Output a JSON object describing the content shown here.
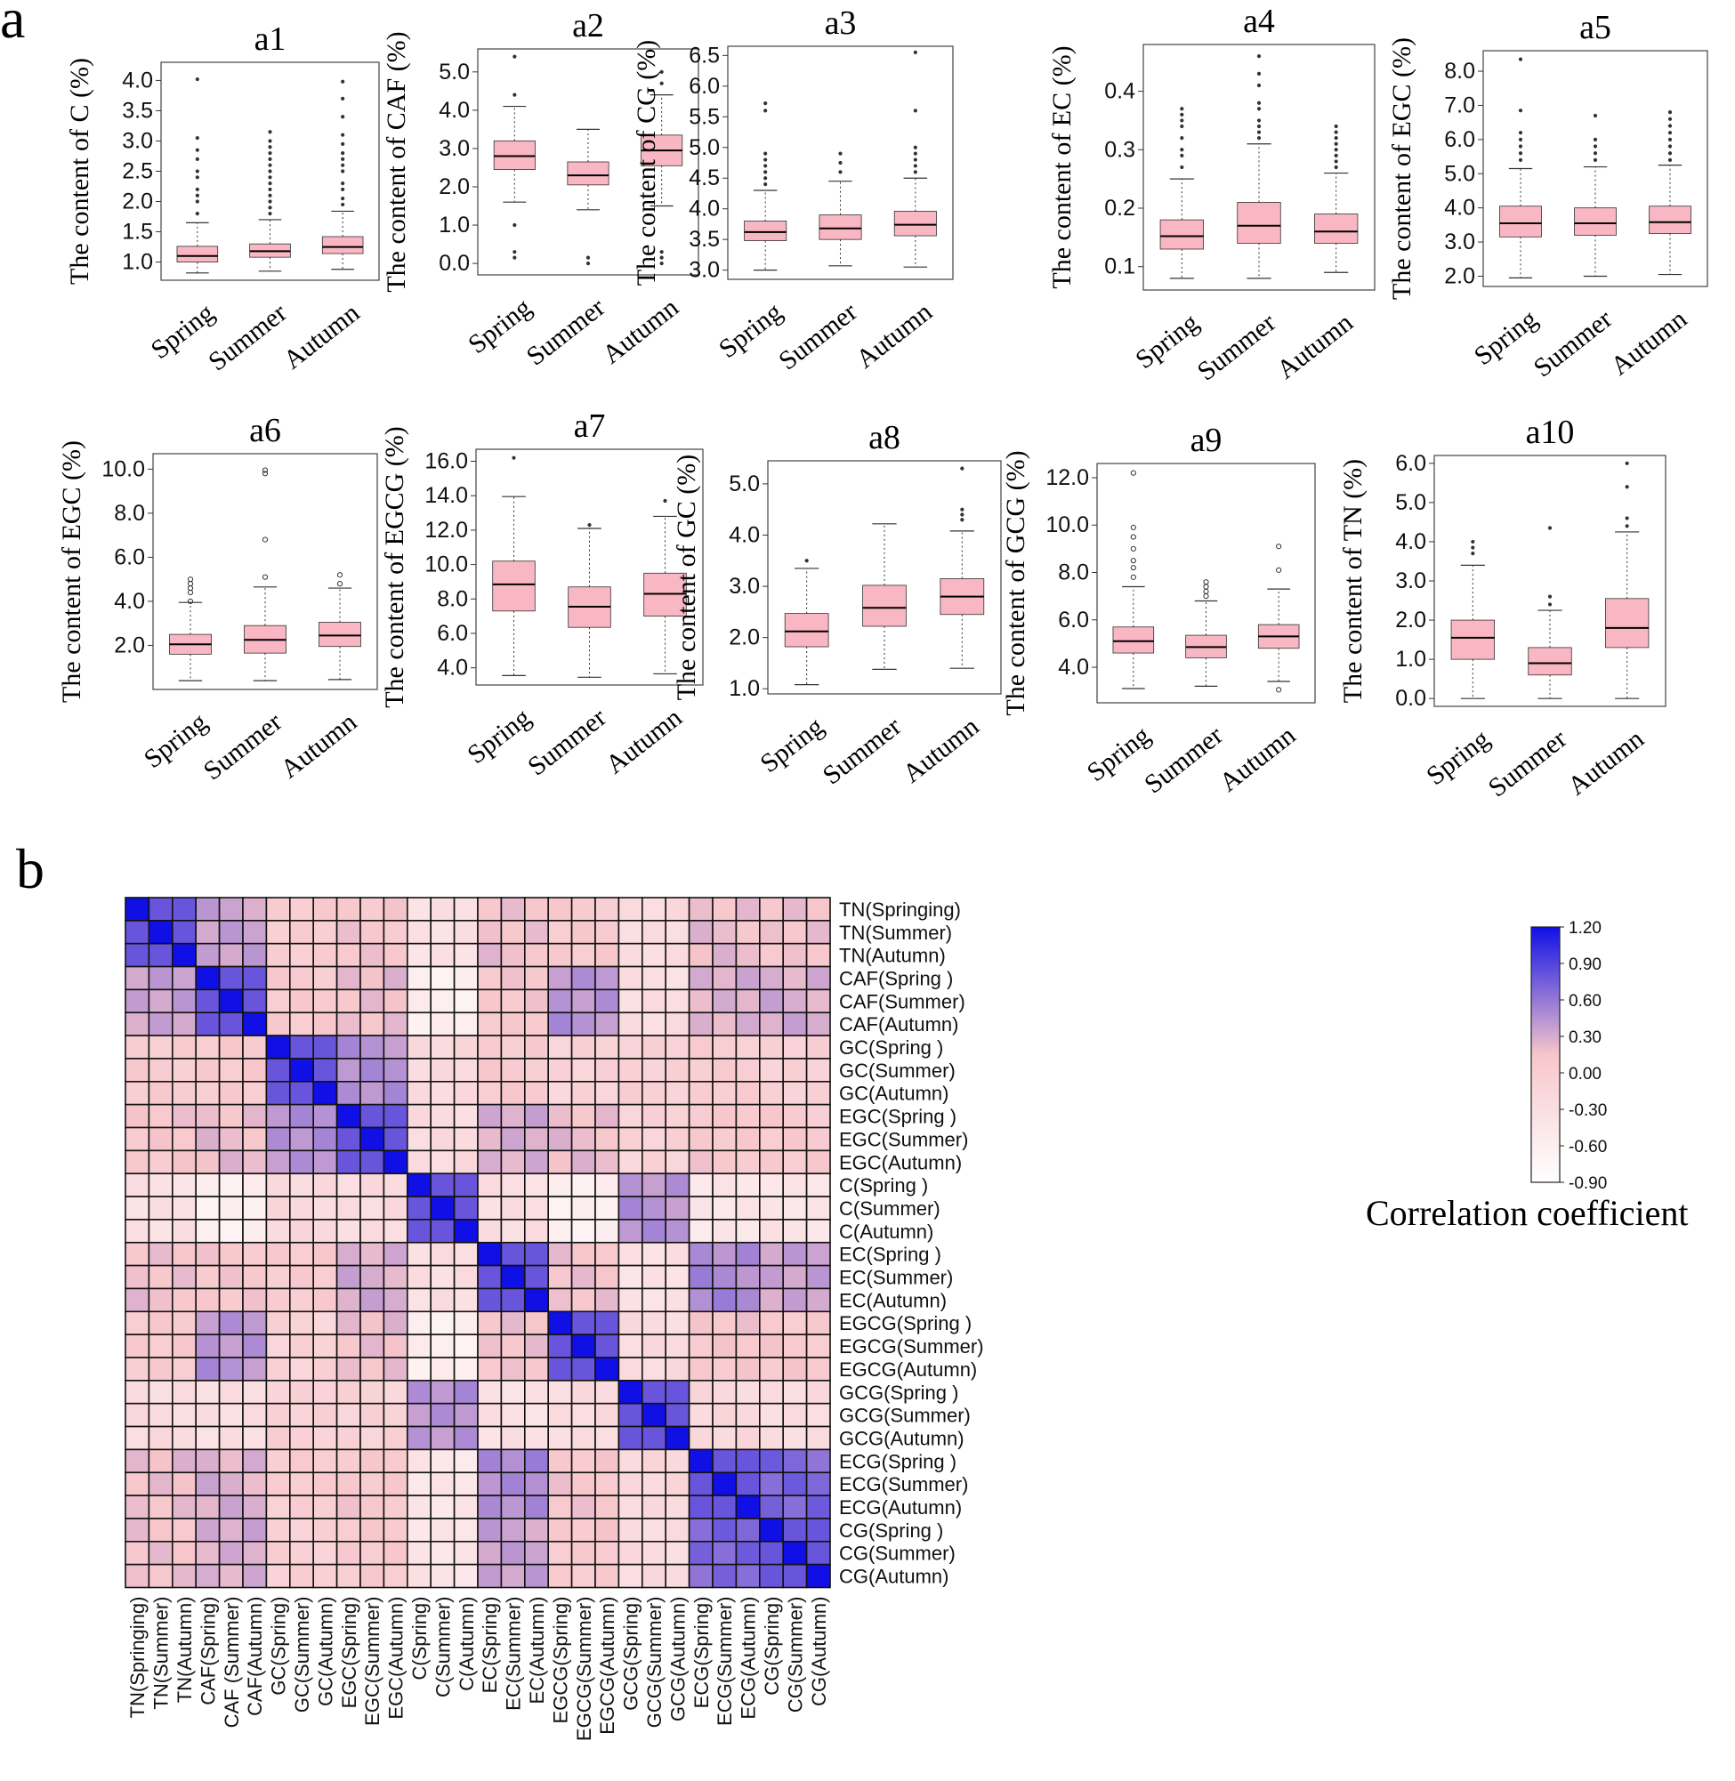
{
  "figure": {
    "panel_a_label": "a",
    "panel_b_label": "b"
  },
  "colors": {
    "box_fill": "#f9b6c3",
    "box_edge": "#333333",
    "heat_low": "#ffffff",
    "heat_mid": "#f7c6cb",
    "heat_high": "#1010e6"
  },
  "chart_data": [
    {
      "id": "a1",
      "type": "box",
      "title": "a1",
      "ylabel": "The content of C (%)",
      "categories": [
        "Spring",
        "Summer",
        "Autumn"
      ],
      "yticks": [
        1.0,
        1.5,
        2.0,
        2.5,
        3.0,
        3.5,
        4.0
      ],
      "tick_labels": [
        "1.0",
        "1.5",
        "2.0",
        "2.5",
        "3.0",
        "3.5",
        "4.0"
      ],
      "ylim": [
        0.7,
        4.3
      ],
      "boxes": [
        {
          "min": 0.82,
          "q1": 1.0,
          "median": 1.1,
          "q3": 1.26,
          "max": 1.65,
          "outliers": [
            1.8,
            2.0,
            2.1,
            2.2,
            2.4,
            2.5,
            2.7,
            2.85,
            3.05,
            4.02
          ]
        },
        {
          "min": 0.85,
          "q1": 1.08,
          "median": 1.18,
          "q3": 1.3,
          "max": 1.7,
          "outliers": [
            1.8,
            1.9,
            2.0,
            2.1,
            2.2,
            2.3,
            2.4,
            2.5,
            2.6,
            2.7,
            2.8,
            2.9,
            3.0,
            3.15
          ]
        },
        {
          "min": 0.88,
          "q1": 1.14,
          "median": 1.25,
          "q3": 1.42,
          "max": 1.84,
          "outliers": [
            1.95,
            2.05,
            2.2,
            2.3,
            2.5,
            2.6,
            2.7,
            2.8,
            2.95,
            3.1,
            3.4,
            3.7,
            3.98
          ]
        }
      ]
    },
    {
      "id": "a2",
      "type": "box",
      "title": "a2",
      "ylabel": "The content of CAF (%)",
      "categories": [
        "Spring",
        "Summer",
        "Autumn"
      ],
      "yticks": [
        0,
        1,
        2,
        3,
        4,
        5
      ],
      "tick_labels": [
        "0.0",
        "1.0",
        "2.0",
        "3.0",
        "4.0",
        "5.0"
      ],
      "ylim": [
        -0.3,
        5.6
      ],
      "boxes": [
        {
          "min": 1.6,
          "q1": 2.45,
          "median": 2.8,
          "q3": 3.2,
          "max": 4.1,
          "outliers": [
            0.15,
            0.3,
            1.0,
            4.4,
            5.4
          ]
        },
        {
          "min": 1.4,
          "q1": 2.05,
          "median": 2.3,
          "q3": 2.65,
          "max": 3.5,
          "outliers": [
            0.0,
            0.15
          ]
        },
        {
          "min": 1.5,
          "q1": 2.55,
          "median": 2.95,
          "q3": 3.35,
          "max": 4.4,
          "outliers": [
            0.0,
            0.15,
            0.3,
            4.7,
            5.0
          ]
        }
      ]
    },
    {
      "id": "a3",
      "type": "box",
      "title": "a3",
      "ylabel": "The content of CG (%)",
      "categories": [
        "Spring",
        "Summer",
        "Autumn"
      ],
      "yticks": [
        3.0,
        3.5,
        4.0,
        4.5,
        5.0,
        5.5,
        6.0,
        6.5
      ],
      "tick_labels": [
        "3.0",
        "3.5",
        "4.0",
        "4.5",
        "5.0",
        "5.5",
        "6.0",
        "6.5"
      ],
      "ylim": [
        2.85,
        6.65
      ],
      "boxes": [
        {
          "min": 3.0,
          "q1": 3.48,
          "median": 3.62,
          "q3": 3.8,
          "max": 4.3,
          "outliers": [
            4.4,
            4.5,
            4.6,
            4.7,
            4.8,
            4.9,
            5.6,
            5.72
          ]
        },
        {
          "min": 3.07,
          "q1": 3.5,
          "median": 3.68,
          "q3": 3.9,
          "max": 4.45,
          "outliers": [
            4.6,
            4.75,
            4.9
          ]
        },
        {
          "min": 3.05,
          "q1": 3.56,
          "median": 3.74,
          "q3": 3.96,
          "max": 4.5,
          "outliers": [
            4.6,
            4.7,
            4.8,
            4.9,
            5.0,
            5.6,
            6.55
          ]
        }
      ]
    },
    {
      "id": "a4",
      "type": "box",
      "title": "a4",
      "ylabel": "The content of EC (%)",
      "categories": [
        "Spring",
        "Summer",
        "Autumn"
      ],
      "yticks": [
        0.1,
        0.2,
        0.3,
        0.4
      ],
      "tick_labels": [
        "0.1",
        "0.2",
        "0.3",
        "0.4"
      ],
      "ylim": [
        0.06,
        0.48
      ],
      "boxes": [
        {
          "min": 0.08,
          "q1": 0.13,
          "median": 0.152,
          "q3": 0.18,
          "max": 0.25,
          "outliers": [
            0.27,
            0.29,
            0.3,
            0.32,
            0.34,
            0.35,
            0.36,
            0.37
          ]
        },
        {
          "min": 0.08,
          "q1": 0.14,
          "median": 0.17,
          "q3": 0.21,
          "max": 0.31,
          "outliers": [
            0.32,
            0.33,
            0.34,
            0.35,
            0.37,
            0.38,
            0.41,
            0.43,
            0.46
          ]
        },
        {
          "min": 0.09,
          "q1": 0.14,
          "median": 0.16,
          "q3": 0.19,
          "max": 0.26,
          "outliers": [
            0.27,
            0.28,
            0.29,
            0.3,
            0.31,
            0.32,
            0.33,
            0.34
          ]
        }
      ]
    },
    {
      "id": "a5",
      "type": "box",
      "title": "a5",
      "ylabel": "The content of EGC (%)",
      "categories": [
        "Spring",
        "Summer",
        "Autumn"
      ],
      "yticks": [
        2,
        3,
        4,
        5,
        6,
        7,
        8
      ],
      "tick_labels": [
        "2.0",
        "3.0",
        "4.0",
        "5.0",
        "6.0",
        "7.0",
        "8.0"
      ],
      "ylim": [
        1.7,
        8.6
      ],
      "boxes": [
        {
          "min": 1.95,
          "q1": 3.15,
          "median": 3.55,
          "q3": 4.05,
          "max": 5.15,
          "outliers": [
            5.4,
            5.6,
            5.8,
            6.0,
            6.2,
            6.85,
            8.35
          ]
        },
        {
          "min": 2.0,
          "q1": 3.2,
          "median": 3.55,
          "q3": 4.0,
          "max": 5.2,
          "outliers": [
            5.4,
            5.6,
            5.8,
            6.0,
            6.7
          ]
        },
        {
          "min": 2.05,
          "q1": 3.25,
          "median": 3.58,
          "q3": 4.05,
          "max": 5.25,
          "outliers": [
            5.4,
            5.6,
            5.8,
            6.0,
            6.2,
            6.4,
            6.6,
            6.8
          ]
        }
      ]
    },
    {
      "id": "a6",
      "type": "box",
      "title": "a6",
      "ylabel": "The content of EGC (%)",
      "categories": [
        "Spring",
        "Summer",
        "Autumn"
      ],
      "yticks": [
        2,
        4,
        6,
        8,
        10
      ],
      "tick_labels": [
        "2.0",
        "4.0",
        "6.0",
        "8.0",
        "10.0"
      ],
      "ylim": [
        0,
        10.7
      ],
      "boxes": [
        {
          "min": 0.4,
          "q1": 1.6,
          "median": 2.05,
          "q3": 2.5,
          "max": 3.95,
          "outliers": [
            4.0,
            4.4,
            4.6,
            4.8,
            5.0
          ]
        },
        {
          "min": 0.4,
          "q1": 1.65,
          "median": 2.25,
          "q3": 2.9,
          "max": 4.65,
          "outliers": [
            5.1,
            6.8,
            9.8,
            9.95
          ]
        },
        {
          "min": 0.45,
          "q1": 1.95,
          "median": 2.45,
          "q3": 3.05,
          "max": 4.6,
          "outliers": [
            4.8,
            5.2
          ]
        }
      ]
    },
    {
      "id": "a7",
      "type": "box",
      "title": "a7",
      "ylabel": "The content of EGCG (%)",
      "categories": [
        "Spring",
        "Summer",
        "Autumn"
      ],
      "yticks": [
        4,
        6,
        8,
        10,
        12,
        14,
        16
      ],
      "tick_labels": [
        "4.0",
        "6.0",
        "8.0",
        "10.0",
        "12.0",
        "14.0",
        "16.0"
      ],
      "ylim": [
        3.0,
        16.7
      ],
      "boxes": [
        {
          "min": 3.55,
          "q1": 7.3,
          "median": 8.85,
          "q3": 10.2,
          "max": 13.95,
          "outliers": [
            16.2
          ]
        },
        {
          "min": 3.45,
          "q1": 6.35,
          "median": 7.55,
          "q3": 8.7,
          "max": 12.1,
          "outliers": [
            12.3
          ]
        },
        {
          "min": 3.65,
          "q1": 7.0,
          "median": 8.3,
          "q3": 9.5,
          "max": 12.8,
          "outliers": [
            13.7
          ]
        }
      ]
    },
    {
      "id": "a8",
      "type": "box",
      "title": "a8",
      "ylabel": "The content of GC (%)",
      "categories": [
        "Spring",
        "Summer",
        "Autumn"
      ],
      "yticks": [
        1,
        2,
        3,
        4,
        5
      ],
      "tick_labels": [
        "1.0",
        "2.0",
        "3.0",
        "4.0",
        "5.0"
      ],
      "ylim": [
        0.9,
        5.45
      ],
      "boxes": [
        {
          "min": 1.08,
          "q1": 1.82,
          "median": 2.12,
          "q3": 2.47,
          "max": 3.35,
          "outliers": [
            3.5
          ]
        },
        {
          "min": 1.38,
          "q1": 2.22,
          "median": 2.58,
          "q3": 3.02,
          "max": 4.22,
          "outliers": []
        },
        {
          "min": 1.4,
          "q1": 2.45,
          "median": 2.8,
          "q3": 3.15,
          "max": 4.08,
          "outliers": [
            4.3,
            4.4,
            4.5,
            5.3
          ]
        }
      ]
    },
    {
      "id": "a9",
      "type": "box",
      "title": "a9",
      "ylabel": "The content of GCG (%)",
      "categories": [
        "Spring",
        "Summer",
        "Autumn"
      ],
      "yticks": [
        4,
        6,
        8,
        10,
        12
      ],
      "tick_labels": [
        "4.0",
        "6.0",
        "8.0",
        "10.0",
        "12.0"
      ],
      "ylim": [
        2.5,
        12.6
      ],
      "boxes": [
        {
          "min": 3.1,
          "q1": 4.6,
          "median": 5.1,
          "q3": 5.7,
          "max": 7.4,
          "outliers": [
            7.8,
            8.2,
            8.5,
            9.0,
            9.5,
            9.9,
            12.2
          ]
        },
        {
          "min": 3.2,
          "q1": 4.4,
          "median": 4.85,
          "q3": 5.35,
          "max": 6.8,
          "outliers": [
            7.0,
            7.2,
            7.4,
            7.6
          ]
        },
        {
          "min": 3.4,
          "q1": 4.8,
          "median": 5.3,
          "q3": 5.8,
          "max": 7.3,
          "outliers": [
            3.05,
            8.1,
            9.1
          ]
        }
      ]
    },
    {
      "id": "a10",
      "type": "box",
      "title": "a10",
      "ylabel": "The content of TN (%)",
      "categories": [
        "Spring",
        "Summer",
        "Autumn"
      ],
      "yticks": [
        0,
        1,
        2,
        3,
        4,
        5,
        6
      ],
      "tick_labels": [
        "0.0",
        "1.0",
        "2.0",
        "3.0",
        "4.0",
        "5.0",
        "6.0"
      ],
      "ylim": [
        -0.2,
        6.2
      ],
      "boxes": [
        {
          "min": 0.0,
          "q1": 1.0,
          "median": 1.55,
          "q3": 2.0,
          "max": 3.4,
          "outliers": [
            3.7,
            3.85,
            4.0
          ]
        },
        {
          "min": 0.0,
          "q1": 0.6,
          "median": 0.9,
          "q3": 1.3,
          "max": 2.25,
          "outliers": [
            2.4,
            2.6,
            4.35
          ]
        },
        {
          "min": 0.0,
          "q1": 1.3,
          "median": 1.8,
          "q3": 2.55,
          "max": 4.25,
          "outliers": [
            4.4,
            4.6,
            5.4,
            6.0
          ]
        }
      ]
    },
    {
      "id": "b",
      "type": "heatmap",
      "title": "",
      "legend_title": "Correlation coefficient",
      "colorbar": {
        "min": -0.9,
        "max": 1.2,
        "ticks": [
          "1.20",
          "0.90",
          "0.60",
          "0.30",
          "0.00",
          "-0.30",
          "-0.60",
          "-0.90"
        ]
      },
      "row_labels": [
        "TN(Springing)",
        "TN(Summer)",
        "TN(Autumn)",
        "CAF(Spring )",
        "CAF(Summer)",
        "CAF(Autumn)",
        "GC(Spring )",
        "GC(Summer)",
        "GC(Autumn)",
        "EGC(Spring )",
        "EGC(Summer)",
        "EGC(Autumn)",
        "C(Spring )",
        "C(Summer)",
        "C(Autumn)",
        "EC(Spring )",
        "EC(Summer)",
        "EC(Autumn)",
        "EGCG(Spring )",
        "EGCG(Summer)",
        "EGCG(Autumn)",
        "GCG(Spring )",
        "GCG(Summer)",
        "GCG(Autumn)",
        "ECG(Spring )",
        "ECG(Summer)",
        "ECG(Autumn)",
        "CG(Spring )",
        "CG(Summer)",
        "CG(Autumn)"
      ],
      "col_labels": [
        "TN(Springing)",
        "TN(Summer)",
        "TN(Autumn)",
        "CAF(Spring)",
        "CAF (Summer)",
        "CAF(Autumn)",
        "GC(Spring)",
        "GC(Summer)",
        "GC(Autumn)",
        "EGC(Spring)",
        "EGC(Summer)",
        "EGC(Autumn)",
        "C(Spring)",
        "C(Summer)",
        "C(Autumn)",
        "EC(Spring)",
        "EC(Summer)",
        "EC(Autumn)",
        "EGCG(Spring)",
        "EGCG(Summer)",
        "EGCG(Autumn)",
        "GCG(Spring)",
        "GCG(Summer)",
        "GCG(Autumn)",
        "ECG(Spring)",
        "ECG(Summer)",
        "ECG(Autumn)",
        "CG(Spring)",
        "CG(Summer)",
        "CG(Autumn)"
      ],
      "groups": [
        "TN",
        "CAF",
        "GC",
        "EGC",
        "C",
        "EC",
        "EGCG",
        "GCG",
        "ECG",
        "CG"
      ],
      "group_correlation": [
        [
          0.85,
          0.35,
          0.02,
          0.12,
          -0.35,
          0.18,
          0.05,
          -0.25,
          0.2,
          0.15
        ],
        [
          0.35,
          0.9,
          0.05,
          0.2,
          -0.6,
          0.1,
          0.45,
          -0.3,
          0.28,
          0.3
        ],
        [
          0.02,
          0.05,
          0.75,
          0.45,
          -0.2,
          0.05,
          -0.1,
          -0.05,
          0.0,
          -0.05
        ],
        [
          0.12,
          0.2,
          0.45,
          0.82,
          -0.25,
          0.3,
          0.2,
          -0.1,
          0.1,
          0.05
        ],
        [
          -0.35,
          -0.6,
          -0.2,
          -0.25,
          1.05,
          -0.3,
          -0.6,
          0.45,
          -0.45,
          -0.4
        ],
        [
          0.18,
          0.1,
          0.05,
          0.3,
          -0.3,
          0.8,
          0.15,
          -0.35,
          0.5,
          0.35
        ],
        [
          0.05,
          0.45,
          -0.1,
          0.2,
          -0.6,
          0.15,
          0.85,
          -0.25,
          0.12,
          0.08
        ],
        [
          -0.25,
          -0.3,
          -0.05,
          -0.1,
          0.45,
          -0.35,
          -0.25,
          0.9,
          -0.2,
          -0.25
        ],
        [
          0.2,
          0.28,
          0.0,
          0.1,
          -0.45,
          0.5,
          0.12,
          -0.2,
          0.85,
          0.7
        ],
        [
          0.15,
          0.3,
          -0.05,
          0.05,
          -0.4,
          0.35,
          0.08,
          -0.25,
          0.7,
          0.85
        ]
      ],
      "same_group_offdiag": 0.8
    }
  ]
}
